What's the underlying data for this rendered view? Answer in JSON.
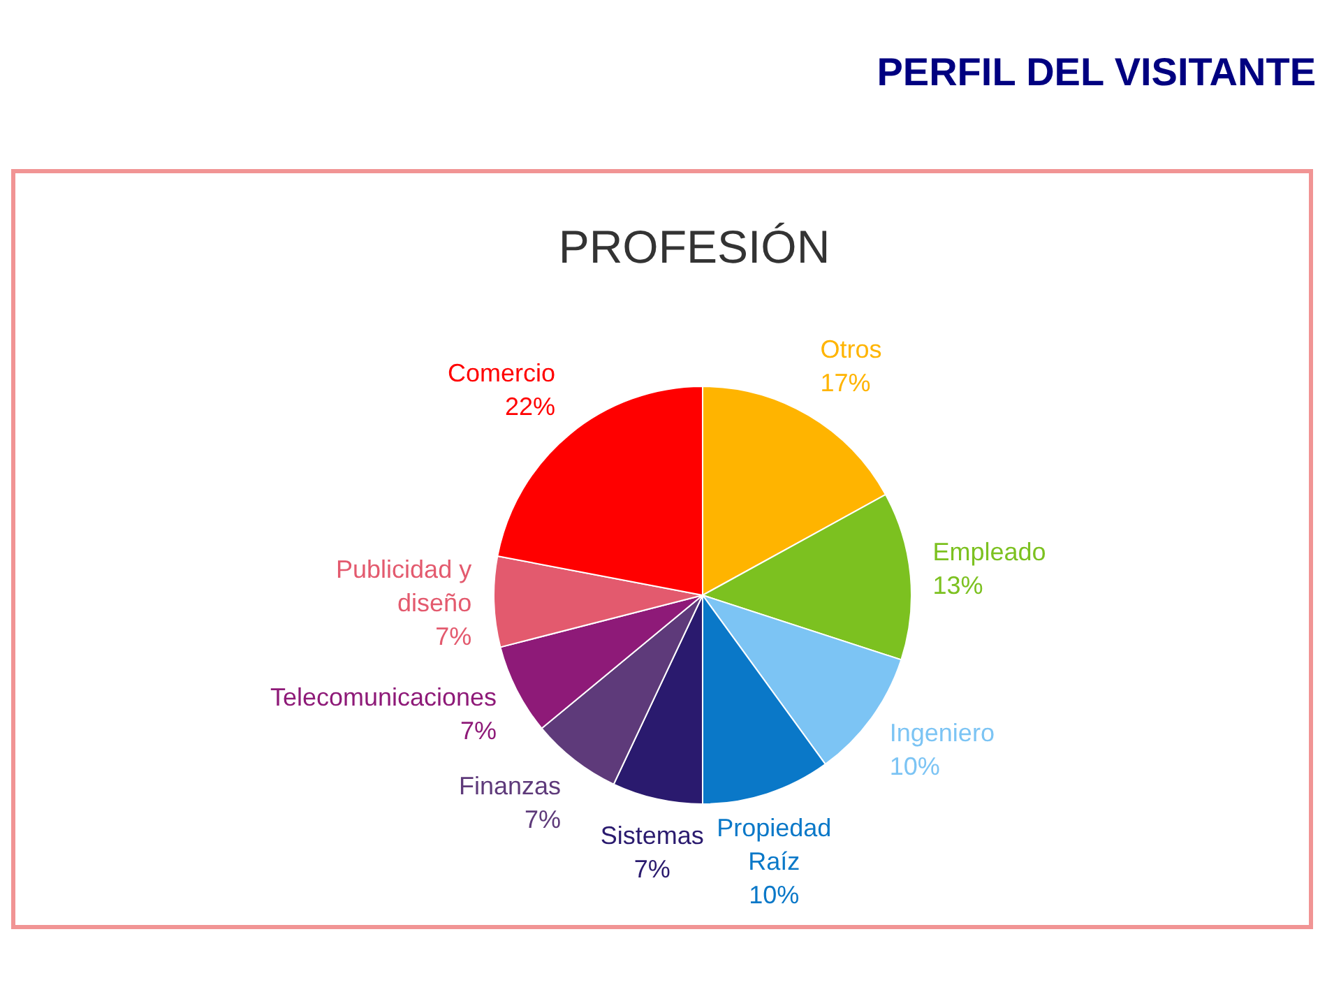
{
  "chart_data": {
    "type": "pie",
    "title": "PERFIL DEL VISITANTE",
    "subtitle": "PROFESIÓN",
    "categories": [
      "Otros",
      "Empleado",
      "Ingeniero",
      "Propiedad Raíz",
      "Sistemas",
      "Finanzas",
      "Telecomunicaciones",
      "Publicidad y diseño",
      "Comercio"
    ],
    "values": [
      17,
      13,
      10,
      10,
      7,
      7,
      7,
      7,
      22
    ],
    "value_labels": [
      "17%",
      "13%",
      "10%",
      "10%",
      "7%",
      "7%",
      "7%",
      "7%",
      "22%"
    ],
    "colors": [
      "#ffb400",
      "#7cc120",
      "#7cc4f4",
      "#0a78c8",
      "#2a1a6e",
      "#5e3a7a",
      "#8e1a78",
      "#e35a6e",
      "#ff0000"
    ]
  }
}
